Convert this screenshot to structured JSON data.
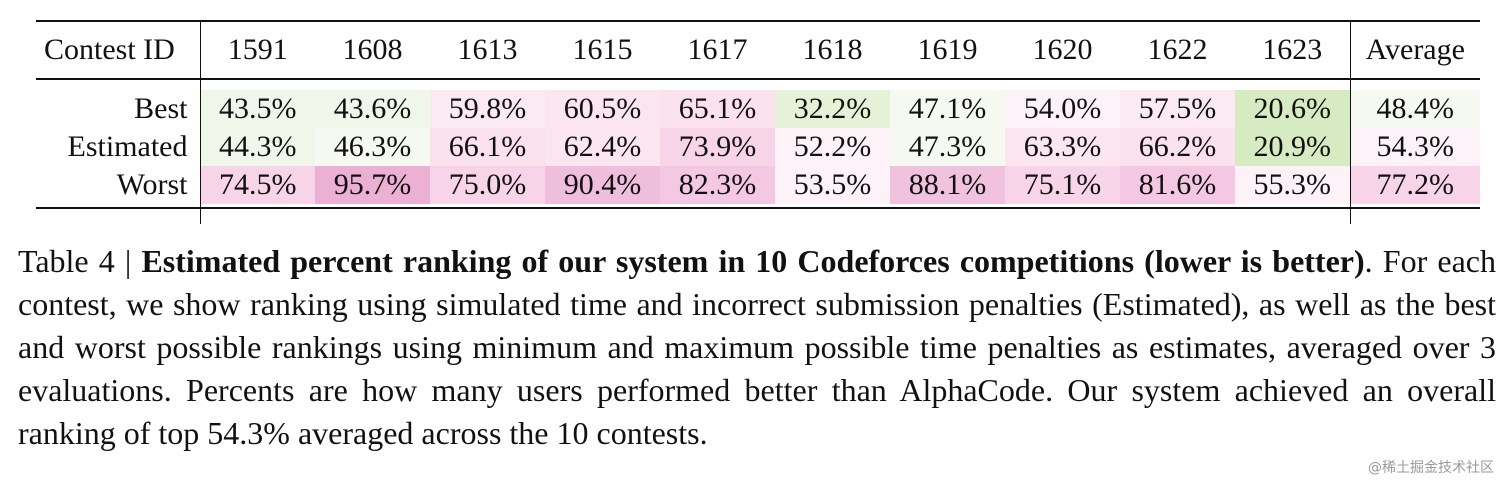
{
  "table": {
    "header_label": "Contest ID",
    "contest_ids": [
      "1591",
      "1608",
      "1613",
      "1615",
      "1617",
      "1618",
      "1619",
      "1620",
      "1622",
      "1623"
    ],
    "average_label": "Average",
    "rows": [
      {
        "label": "Best",
        "values": [
          "43.5%",
          "43.6%",
          "59.8%",
          "60.5%",
          "65.1%",
          "32.2%",
          "47.1%",
          "54.0%",
          "57.5%",
          "20.6%"
        ],
        "colors": [
          "#f1f6ea",
          "#f1f6ea",
          "#fbeaf2",
          "#fbe6f0",
          "#fbe0ee",
          "#e6f2d8",
          "#f6f8f2",
          "#fdf2f7",
          "#fbeaf2",
          "#d6ebc2"
        ],
        "average": "48.4%",
        "average_color": "#f6f8f2"
      },
      {
        "label": "Estimated",
        "values": [
          "44.3%",
          "46.3%",
          "66.1%",
          "62.4%",
          "73.9%",
          "52.2%",
          "47.3%",
          "63.3%",
          "66.2%",
          "20.9%"
        ],
        "colors": [
          "#f1f6ea",
          "#f6f8f2",
          "#fbe0ee",
          "#fbe6f0",
          "#f8d4e8",
          "#fdf2f7",
          "#f6f8f2",
          "#fbe6f0",
          "#fbe0ee",
          "#d6ebc2"
        ],
        "average": "54.3%",
        "average_color": "#fdf2f7"
      },
      {
        "label": "Worst",
        "values": [
          "74.5%",
          "95.7%",
          "75.0%",
          "90.4%",
          "82.3%",
          "53.5%",
          "88.1%",
          "75.1%",
          "81.6%",
          "55.3%"
        ],
        "colors": [
          "#f8d4e8",
          "#ebb0d3",
          "#f8d4e8",
          "#efbedc",
          "#f4c8e2",
          "#fdf2f7",
          "#f0c2de",
          "#f8d4e8",
          "#f4c8e2",
          "#fdf2f7"
        ],
        "average": "77.2%",
        "average_color": "#f8d4e8"
      }
    ]
  },
  "caption": {
    "prefix": "Table 4 | ",
    "bold_title": "Estimated percent ranking of our system in 10 Codeforces competitions (lower is better)",
    "body": ". For each contest, we show ranking using simulated time and incorrect submission penalties (Estimated), as well as the best and worst possible rankings using minimum and maximum possible time penalties as estimates, averaged over 3 evaluations. Percents are how many users performed better than AlphaCode. Our system achieved an overall ranking of top 54.3% averaged across the 10 contests."
  },
  "watermark": "@稀土掘金技术社区"
}
